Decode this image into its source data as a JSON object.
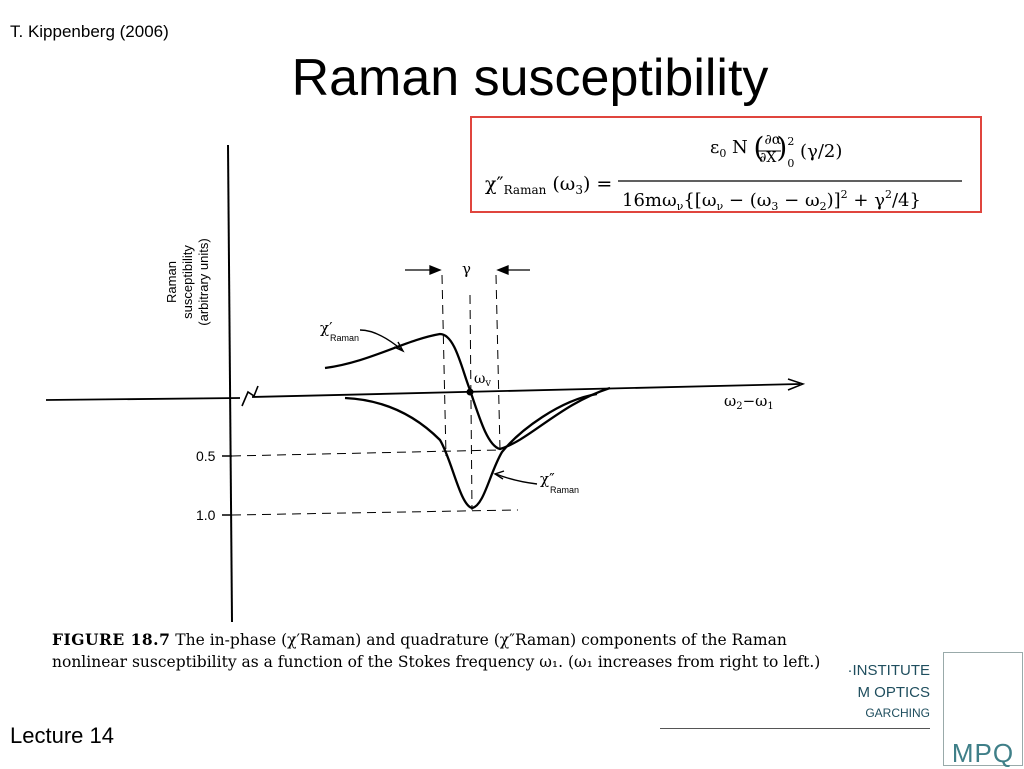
{
  "header": {
    "author": "T. Kippenberg (2006)",
    "title": "Raman susceptibility"
  },
  "formula": {
    "lhs": "χ″Raman (ω₃)  =",
    "numerator": "ε₀ N (∂α/∂X)₀² (γ/2)",
    "denominator": "16mω_ν{[ω_ν − (ω₃ − ω₂)]² + γ²/4}"
  },
  "figure": {
    "y_axis_label": [
      "Raman",
      "susceptibility",
      "(arbitrary  units)"
    ],
    "x_axis_label": "ω₂−ω₁",
    "tick_labels": [
      "0.5",
      "1.0"
    ],
    "gamma_label": "γ",
    "omega_v_label": "ω_v",
    "chi_prime_label": "χ′",
    "chi_prime_sub": "Raman",
    "chi_dprime_label": "χ″",
    "chi_dprime_sub": "Raman"
  },
  "caption": {
    "figure_label": "FIGURE 18.7",
    "text": "The in-phase (χ′Raman) and quadrature (χ″Raman) components of the Raman nonlinear susceptibility as a function of the Stokes frequency ω₁. (ω₁ increases from right to left.)"
  },
  "footer": {
    "lecture": "Lecture 14",
    "institute_line1": "·INSTITUTE",
    "institute_line2": "M  OPTICS",
    "institute_line3": "GARCHING",
    "logo_text": "MPQ"
  },
  "colors": {
    "formula_border": "#e0453e",
    "institute_text": "#1f4e5e",
    "logo": "#3f7f88"
  }
}
